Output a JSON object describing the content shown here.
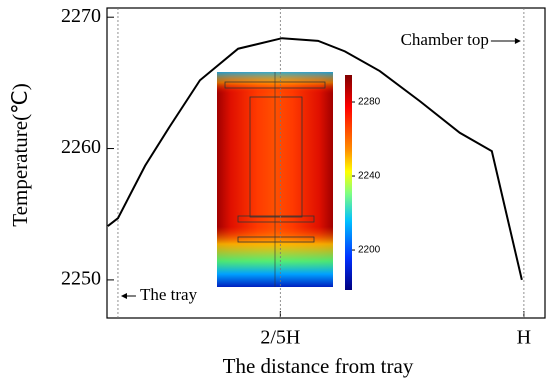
{
  "chart_data": {
    "type": "line",
    "x_label": "The distance from tray",
    "y_label": "Temperature(℃)",
    "x": [
      -0.025,
      0,
      0.067,
      0.128,
      0.202,
      0.296,
      0.404,
      0.493,
      0.559,
      0.645,
      0.744,
      0.842,
      0.921,
      0.995
    ],
    "values": [
      2254.1,
      2254.7,
      2258.7,
      2261.7,
      2265.2,
      2267.6,
      2268.4,
      2268.2,
      2267.4,
      2265.9,
      2263.6,
      2261.2,
      2259.8,
      2250.0
    ],
    "color": "#000000",
    "xlim": [
      -0.027,
      1.052
    ],
    "ylim": [
      2247.1,
      2270.7
    ],
    "xticks": [
      {
        "value": 0.4,
        "label": "2/5H"
      },
      {
        "value": 1,
        "label": "H"
      }
    ],
    "yticks": [
      2250,
      2260,
      2270
    ],
    "vlines": [
      0,
      0.4,
      1
    ],
    "annotations": [
      "The tray",
      "Chamber top"
    ],
    "colorbar": {
      "lim": [
        2178.4,
        2294.6
      ],
      "ticks": [
        2200,
        2240,
        2280
      ]
    }
  }
}
